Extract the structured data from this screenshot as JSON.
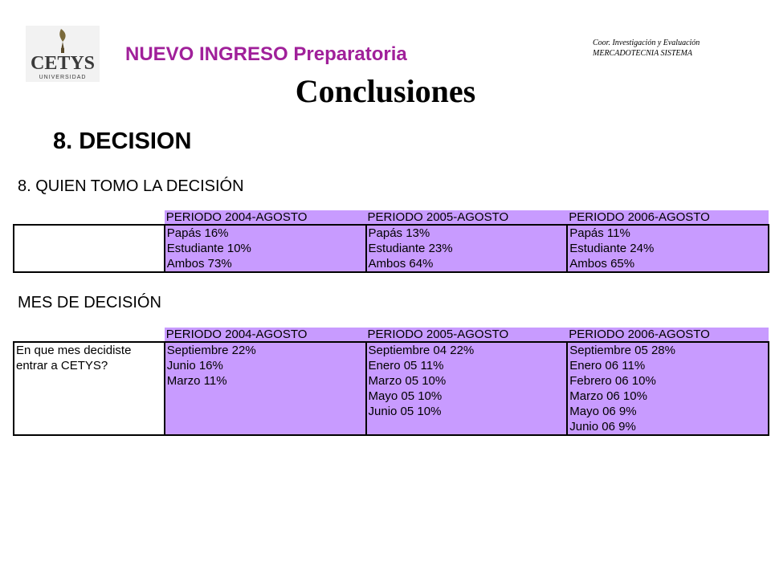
{
  "header": {
    "logo_text": "CETYS",
    "logo_subtext": "UNIVERSIDAD",
    "title": "NUEVO INGRESO Preparatoria",
    "coord_line1": "Coor. Investigación y Evaluación",
    "coord_line2": "MERCADOTECNIA SISTEMA",
    "page_title": "Conclusiones",
    "section_title": "8. DECISION"
  },
  "table1": {
    "heading": "8. QUIEN TOMO LA DECISIÓN",
    "columns": [
      "PERIODO 2004-AGOSTO",
      "PERIODO 2005-AGOSTO",
      "PERIODO 2006-AGOSTO"
    ],
    "question": "",
    "cells": [
      [
        "Papás 16%",
        "Estudiante 10%",
        "Ambos 73%"
      ],
      [
        "Papás 13%",
        "Estudiante 23%",
        "Ambos 64%"
      ],
      [
        "Papás 11%",
        "Estudiante 24%",
        "Ambos 65%"
      ]
    ]
  },
  "table2": {
    "heading": "MES DE DECISIÓN",
    "columns": [
      "PERIODO 2004-AGOSTO",
      "PERIODO 2005-AGOSTO",
      "PERIODO 2006-AGOSTO"
    ],
    "question": "En que mes decidiste entrar a CETYS?",
    "cells": [
      [
        "Septiembre 22%",
        "Junio 16%",
        "Marzo 11%"
      ],
      [
        "Septiembre 04 22%",
        "Enero 05 11%",
        "Marzo 05 10%",
        "Mayo 05 10%",
        "Junio 05 10%"
      ],
      [
        "Septiembre 05 28%",
        "Enero 06 11%",
        "Febrero 06 10%",
        "Marzo 06 10%",
        "Mayo  06 9%",
        "Junio 06  9%"
      ]
    ]
  }
}
